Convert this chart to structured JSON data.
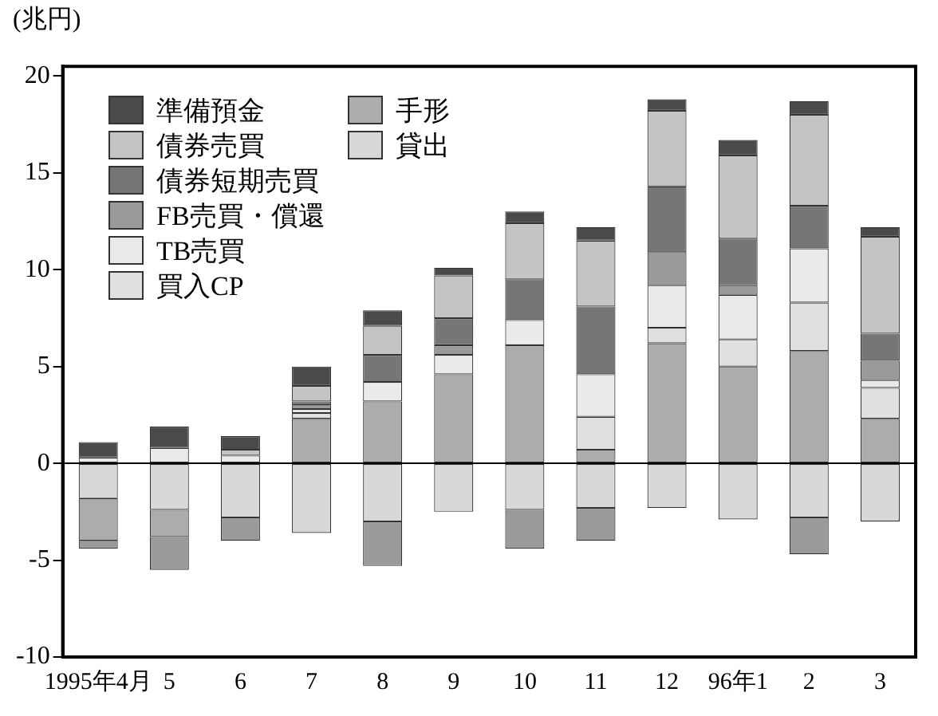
{
  "chart_data": {
    "type": "bar",
    "stacked": true,
    "ylabel": "(兆円)",
    "categories": [
      "1995年4月",
      "5",
      "6",
      "7",
      "8",
      "9",
      "10",
      "11",
      "12",
      "96年1",
      "2",
      "3"
    ],
    "ylim": [
      -10,
      20.5
    ],
    "yticks": [
      -10,
      -5,
      0,
      5,
      10,
      15,
      20
    ],
    "grid": false,
    "legend": "top left",
    "ref_lines": [
      {
        "axis": "y",
        "value": 0,
        "color": "#000000"
      }
    ],
    "series": [
      {
        "name": "貸出",
        "color": "#d8d8d8",
        "values": [
          -1.8,
          -2.4,
          -2.8,
          -3.6,
          -3.0,
          -2.5,
          -2.4,
          -2.3,
          -2.3,
          -2.9,
          -2.8,
          -3.0
        ]
      },
      {
        "name": "手形",
        "color": "#acacac",
        "values": [
          -2.2,
          -1.4,
          null,
          2.3,
          3.2,
          4.6,
          6.1,
          0.7,
          6.2,
          5.0,
          5.8,
          2.3
        ]
      },
      {
        "name": "買入CP",
        "color": "#e0e0e0",
        "values": [
          null,
          null,
          null,
          0.3,
          null,
          null,
          null,
          1.7,
          0.8,
          1.4,
          2.5,
          1.6
        ]
      },
      {
        "name": "TB売買",
        "color": "#eaeaea",
        "values": [
          0.3,
          0.8,
          0.4,
          0.2,
          1.0,
          1.0,
          1.3,
          2.2,
          2.2,
          2.3,
          2.8,
          0.4
        ]
      },
      {
        "name": "FB売買・償還",
        "color": "#9a9a9a",
        "values": [
          -0.4,
          -1.7,
          -1.2,
          0.2,
          -2.3,
          0.5,
          -2.0,
          -1.7,
          1.7,
          0.5,
          -1.9,
          1.0
        ]
      },
      {
        "name": "債券短期売買",
        "color": "#767676",
        "values": [
          null,
          null,
          null,
          0.2,
          1.4,
          1.4,
          2.1,
          3.5,
          3.4,
          2.4,
          2.2,
          1.4
        ]
      },
      {
        "name": "債券売買",
        "color": "#c4c4c4",
        "values": [
          null,
          null,
          0.3,
          0.8,
          1.5,
          2.2,
          2.9,
          3.4,
          3.9,
          4.3,
          4.7,
          5.0
        ]
      },
      {
        "name": "準備預金",
        "color": "#4a4a4a",
        "values": [
          0.8,
          1.1,
          0.7,
          1.0,
          0.8,
          0.4,
          0.6,
          0.7,
          0.6,
          0.8,
          0.7,
          0.5
        ]
      }
    ]
  }
}
